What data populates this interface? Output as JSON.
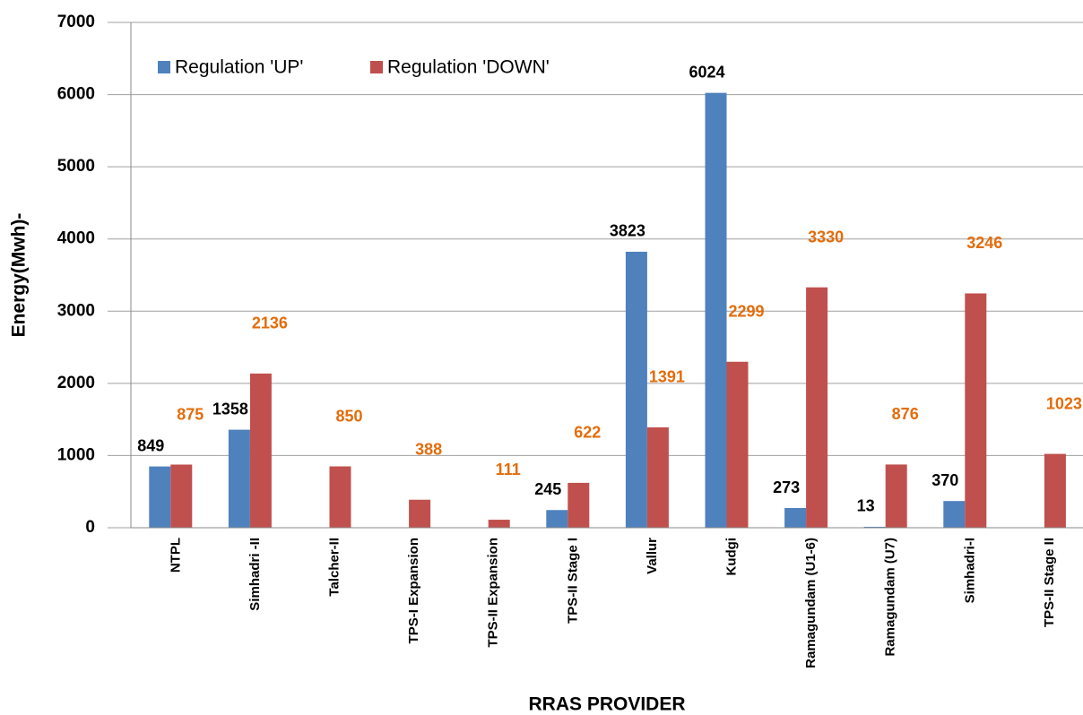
{
  "chart_data": {
    "type": "bar",
    "xlabel": "RRAS PROVIDER",
    "ylabel": "Energy(Mwh)-",
    "categories": [
      "NTPL",
      "Simhadri -II",
      "Talcher-II",
      "TPS-I Expansion",
      "TPS-II Expansion",
      "TPS-II Stage I",
      "Vallur",
      "Kudgi",
      "Ramagundam (U1-6)",
      "Ramagundam (U7)",
      "Simhadri-I",
      "TPS-II Stage II"
    ],
    "series": [
      {
        "name": "Regulation 'UP'",
        "color": "#4f81bd",
        "label_color": "#000000",
        "values": [
          849,
          1358,
          null,
          null,
          null,
          245,
          3823,
          6024,
          273,
          13,
          370,
          null
        ]
      },
      {
        "name": "Regulation 'DOWN'",
        "color": "#c0504d",
        "label_color": "#e46c0a",
        "values": [
          875,
          2136,
          850,
          388,
          111,
          622,
          1391,
          2299,
          3330,
          876,
          3246,
          1023
        ]
      }
    ],
    "ylim": [
      0,
      7000
    ],
    "yticks": [
      0,
      1000,
      2000,
      3000,
      4000,
      5000,
      6000,
      7000
    ],
    "grid": true,
    "legend": "top-left"
  }
}
